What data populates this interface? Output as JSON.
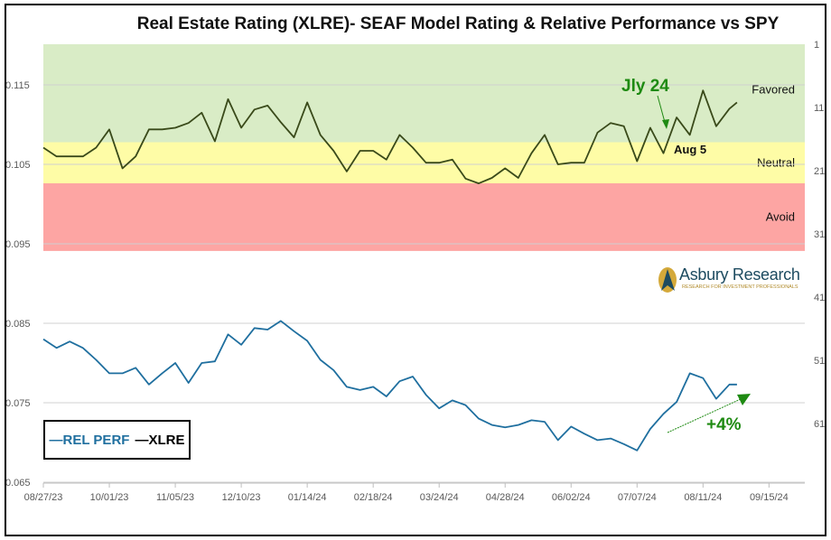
{
  "chart_data": {
    "type": "line",
    "title": "Real Estate Rating (XLRE)- SEAF Model Rating & Relative Performance vs SPY",
    "x_tick_labels": [
      "08/27/23",
      "10/01/23",
      "11/05/23",
      "12/10/23",
      "01/14/24",
      "02/18/24",
      "03/24/24",
      "04/28/24",
      "06/02/24",
      "07/07/24",
      "08/11/24",
      "09/15/24"
    ],
    "xlim": [
      "2023-08-27",
      "2024-10-04"
    ],
    "left_axis": {
      "ticks": [
        "0.065",
        "0.075",
        "0.085",
        "0.095",
        "0.105",
        "0.115"
      ],
      "ylim": [
        0.0625,
        0.12
      ]
    },
    "right_axis": {
      "ticks": [
        "1",
        "11",
        "21",
        "31",
        "41",
        "51",
        "61"
      ],
      "reversed": true
    },
    "zones": [
      {
        "label": "Favored",
        "from": 1,
        "to": 16.5,
        "color": "#d9ecc6"
      },
      {
        "label": "Neutral",
        "from": 16.5,
        "to": 23,
        "color": "#fefca6"
      },
      {
        "label": "Avoid",
        "from": 23,
        "to": 33.7,
        "color": "#fda5a3"
      }
    ],
    "grid": true,
    "dates": [
      "2023-08-27",
      "2023-09-03",
      "2023-09-10",
      "2023-09-17",
      "2023-09-24",
      "2023-10-01",
      "2023-10-08",
      "2023-10-15",
      "2023-10-22",
      "2023-10-29",
      "2023-11-05",
      "2023-11-12",
      "2023-11-19",
      "2023-11-26",
      "2023-12-03",
      "2023-12-10",
      "2023-12-17",
      "2023-12-24",
      "2023-12-31",
      "2024-01-07",
      "2024-01-14",
      "2024-01-21",
      "2024-01-28",
      "2024-02-04",
      "2024-02-11",
      "2024-02-18",
      "2024-02-25",
      "2024-03-03",
      "2024-03-10",
      "2024-03-17",
      "2024-03-24",
      "2024-03-31",
      "2024-04-07",
      "2024-04-14",
      "2024-04-21",
      "2024-04-28",
      "2024-05-05",
      "2024-05-12",
      "2024-05-19",
      "2024-05-26",
      "2024-06-02",
      "2024-06-09",
      "2024-06-16",
      "2024-06-23",
      "2024-06-30",
      "2024-07-07",
      "2024-07-14",
      "2024-07-21",
      "2024-07-28",
      "2024-08-04",
      "2024-08-11",
      "2024-08-18",
      "2024-08-25",
      "2024-08-29"
    ],
    "series": [
      {
        "name": "REL PERF",
        "color": "#1f6f9f",
        "axis": "left",
        "values": [
          0.083,
          0.0819,
          0.0827,
          0.0819,
          0.0804,
          0.0787,
          0.0787,
          0.0794,
          0.0773,
          0.0787,
          0.08,
          0.0775,
          0.08,
          0.0802,
          0.0836,
          0.0823,
          0.0844,
          0.0842,
          0.0853,
          0.084,
          0.0828,
          0.0804,
          0.0791,
          0.077,
          0.0766,
          0.077,
          0.0758,
          0.0777,
          0.0783,
          0.076,
          0.0743,
          0.0753,
          0.0747,
          0.073,
          0.0722,
          0.0719,
          0.0722,
          0.0728,
          0.0726,
          0.0703,
          0.072,
          0.0711,
          0.0703,
          0.0705,
          0.0698,
          0.069,
          0.0717,
          0.0736,
          0.0751,
          0.0787,
          0.0781,
          0.0755,
          0.0773,
          0.0773
        ]
      },
      {
        "name": "XLRE",
        "color": "#3a4a1a",
        "axis": "left",
        "values": [
          0.1071,
          0.106,
          0.106,
          0.106,
          0.1071,
          0.1094,
          0.1045,
          0.106,
          0.1094,
          0.1094,
          0.1096,
          0.1102,
          0.1115,
          0.1079,
          0.1132,
          0.1096,
          0.1119,
          0.1124,
          0.1103,
          0.1084,
          0.1128,
          0.1087,
          0.1067,
          0.1041,
          0.1067,
          0.1067,
          0.1056,
          0.1087,
          0.1071,
          0.1052,
          0.1052,
          0.1056,
          0.1032,
          0.1026,
          0.1033,
          0.1045,
          0.1033,
          0.1064,
          0.1087,
          0.105,
          0.1052,
          0.1052,
          0.109,
          0.1102,
          0.1098,
          0.1054,
          0.1096,
          0.1064,
          0.1109,
          0.1087,
          0.1143,
          0.1098,
          0.112,
          0.1128
        ]
      }
    ],
    "annotations": [
      {
        "text": "Jly 24",
        "color": "#1e8a12"
      },
      {
        "text": "Aug 5"
      },
      {
        "text": "+4%",
        "color": "#1e8a12"
      }
    ],
    "legend": {
      "placement": "bottom-left",
      "items": [
        "—REL PERF",
        "—XLRE"
      ]
    }
  },
  "logo": {
    "name": "Asbury Research",
    "tagline": "RESEARCH FOR INVESTMENT PROFESSIONALS"
  }
}
